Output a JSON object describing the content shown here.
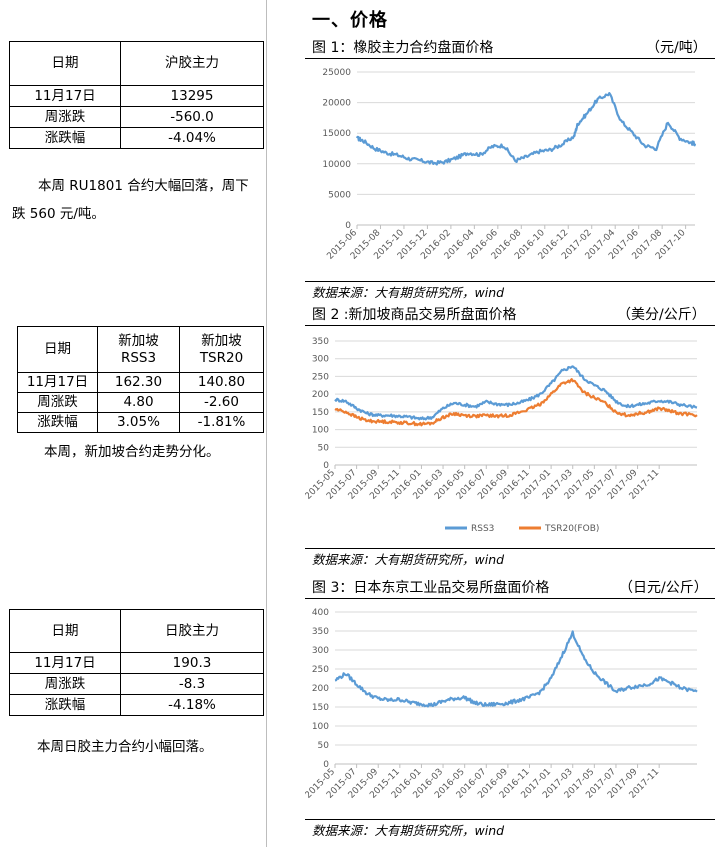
{
  "left": {
    "table1": {
      "headers": [
        "日期",
        "沪胶主力"
      ],
      "rows": [
        [
          "11月17日",
          "13295"
        ],
        [
          "周涨跌",
          "-560.0"
        ],
        [
          "涨跌幅",
          "-4.04%"
        ]
      ]
    },
    "note1_line1": "本周 RU1801 合约大幅回落，周下",
    "note1_line2": "跌 560 元/吨。",
    "table2": {
      "headers": [
        "日期",
        "新加坡\nRSS3",
        "新加坡\nTSR20"
      ],
      "rows": [
        [
          "11月17日",
          "162.30",
          "140.80"
        ],
        [
          "周涨跌",
          "4.80",
          "-2.60"
        ],
        [
          "涨跌幅",
          "3.05%",
          "-1.81%"
        ]
      ]
    },
    "note2": "本周，新加坡合约走势分化。",
    "table3": {
      "headers": [
        "日期",
        "日胶主力"
      ],
      "rows": [
        [
          "11月17日",
          "190.3"
        ],
        [
          "周涨跌",
          "-8.3"
        ],
        [
          "涨跌幅",
          "-4.18%"
        ]
      ]
    },
    "note3": "本周日胶主力合约小幅回落。"
  },
  "right": {
    "section_title": "一、价格",
    "fig1": {
      "title": "图 1：橡胶主力合约盘面价格",
      "unit": "（元/吨）",
      "source": "数据来源：大有期货研究所，wind"
    },
    "fig2": {
      "title": "图 2 :新加坡商品交易所盘面价格",
      "unit": "（美分/公斤）",
      "source": "数据来源：大有期货研究所，wind"
    },
    "fig3": {
      "title": "图 3：日本东京工业品交易所盘面价格",
      "unit": "（日元/公斤）",
      "source": "数据来源：大有期货研究所，wind"
    }
  },
  "colors": {
    "blue": "#5b9bd5",
    "orange": "#ed7d31",
    "grid": "#d9d9d9",
    "axis_text": "#595959"
  },
  "chart_data": [
    {
      "type": "line",
      "ylim": [
        0,
        25000
      ],
      "yticks": [
        0,
        5000,
        10000,
        15000,
        20000,
        25000
      ],
      "xticks": [
        "2015-06",
        "2015-08",
        "2015-10",
        "2015-12",
        "2016-02",
        "2016-04",
        "2016-06",
        "2016-08",
        "2016-10",
        "2016-12",
        "2017-02",
        "2017-04",
        "2017-06",
        "2017-08",
        "2017-10"
      ],
      "legend": "none",
      "grid": "horizontal",
      "series": [
        {
          "color": "#5b9bd5",
          "x": [
            0,
            0.5,
            1.5,
            2.5,
            3.5,
            4.5,
            5.5,
            6.5,
            7.5,
            8.5,
            9.5,
            10.5,
            11.5,
            12.5,
            13.5,
            14.5,
            15.5,
            16.5,
            17.5,
            18.5,
            18.8,
            19.5,
            20.5,
            21.5,
            22.5,
            23.5,
            24.5,
            25.5,
            26.5,
            27.5,
            28.5,
            28.8
          ],
          "y": [
            14200,
            13800,
            12500,
            11800,
            11400,
            10800,
            10500,
            10100,
            10300,
            11000,
            11800,
            11500,
            12800,
            13000,
            10500,
            11200,
            12000,
            12300,
            13200,
            14500,
            16500,
            18000,
            20500,
            21500,
            17000,
            15000,
            13000,
            12500,
            16800,
            14200,
            13400,
            13295
          ]
        }
      ]
    },
    {
      "type": "line",
      "ylim": [
        0,
        350
      ],
      "yticks": [
        0,
        50,
        100,
        150,
        200,
        250,
        300,
        350
      ],
      "xticks": [
        "2015-05",
        "2015-07",
        "2015-09",
        "2015-11",
        "2016-01",
        "2016-03",
        "2016-05",
        "2016-07",
        "2016-09",
        "2016-11",
        "2017-01",
        "2017-03",
        "2017-05",
        "2017-07",
        "2017-09",
        "2017-11"
      ],
      "legend": "bottom",
      "grid": "horizontal",
      "series": [
        {
          "name": "RSS3",
          "color": "#5b9bd5",
          "x": [
            0,
            1,
            2,
            3,
            4,
            5,
            6,
            7,
            8,
            9,
            10,
            11,
            12,
            13,
            14,
            15,
            16,
            17,
            18,
            19,
            20,
            21,
            22,
            23,
            24,
            25,
            26,
            27,
            28,
            29,
            30,
            31,
            32,
            33.5
          ],
          "y": [
            185,
            180,
            160,
            145,
            140,
            140,
            138,
            135,
            130,
            135,
            160,
            175,
            170,
            165,
            178,
            172,
            170,
            175,
            185,
            200,
            230,
            265,
            280,
            245,
            225,
            210,
            180,
            165,
            170,
            175,
            182,
            178,
            170,
            162.3
          ]
        },
        {
          "name": "TSR20(FOB)",
          "color": "#ed7d31",
          "x": [
            0,
            1,
            2,
            3,
            4,
            5,
            6,
            7,
            8,
            9,
            10,
            11,
            12,
            13,
            14,
            15,
            16,
            17,
            18,
            19,
            20,
            21,
            22,
            23,
            24,
            25,
            26,
            27,
            28,
            29,
            30,
            31,
            32,
            33.5
          ],
          "y": [
            158,
            150,
            135,
            125,
            123,
            122,
            120,
            118,
            115,
            118,
            135,
            145,
            140,
            138,
            140,
            138,
            140,
            148,
            158,
            172,
            200,
            230,
            240,
            205,
            190,
            175,
            150,
            140,
            145,
            150,
            160,
            152,
            145,
            140.8
          ]
        }
      ]
    },
    {
      "type": "line",
      "ylim": [
        0,
        400
      ],
      "yticks": [
        0,
        50,
        100,
        150,
        200,
        250,
        300,
        350,
        400
      ],
      "xticks": [
        "2015-05",
        "2015-07",
        "2015-09",
        "2015-11",
        "2016-01",
        "2016-03",
        "2016-05",
        "2016-07",
        "2016-09",
        "2016-11",
        "2017-01",
        "2017-03",
        "2017-05",
        "2017-07",
        "2017-09",
        "2017-11"
      ],
      "legend": "none",
      "grid": "horizontal",
      "series": [
        {
          "color": "#5b9bd5",
          "x": [
            0,
            1,
            2,
            3,
            4,
            5,
            6,
            7,
            8,
            9,
            10,
            11,
            12,
            13,
            14,
            15,
            16,
            17,
            18,
            19,
            20,
            21,
            22,
            23,
            24,
            25,
            26,
            27,
            28,
            29,
            30,
            31,
            32,
            33.5
          ],
          "y": [
            220,
            238,
            210,
            185,
            172,
            168,
            170,
            162,
            158,
            155,
            165,
            172,
            175,
            160,
            155,
            158,
            160,
            168,
            175,
            190,
            225,
            285,
            345,
            280,
            240,
            215,
            190,
            200,
            205,
            210,
            225,
            215,
            200,
            190.3
          ]
        }
      ]
    }
  ]
}
